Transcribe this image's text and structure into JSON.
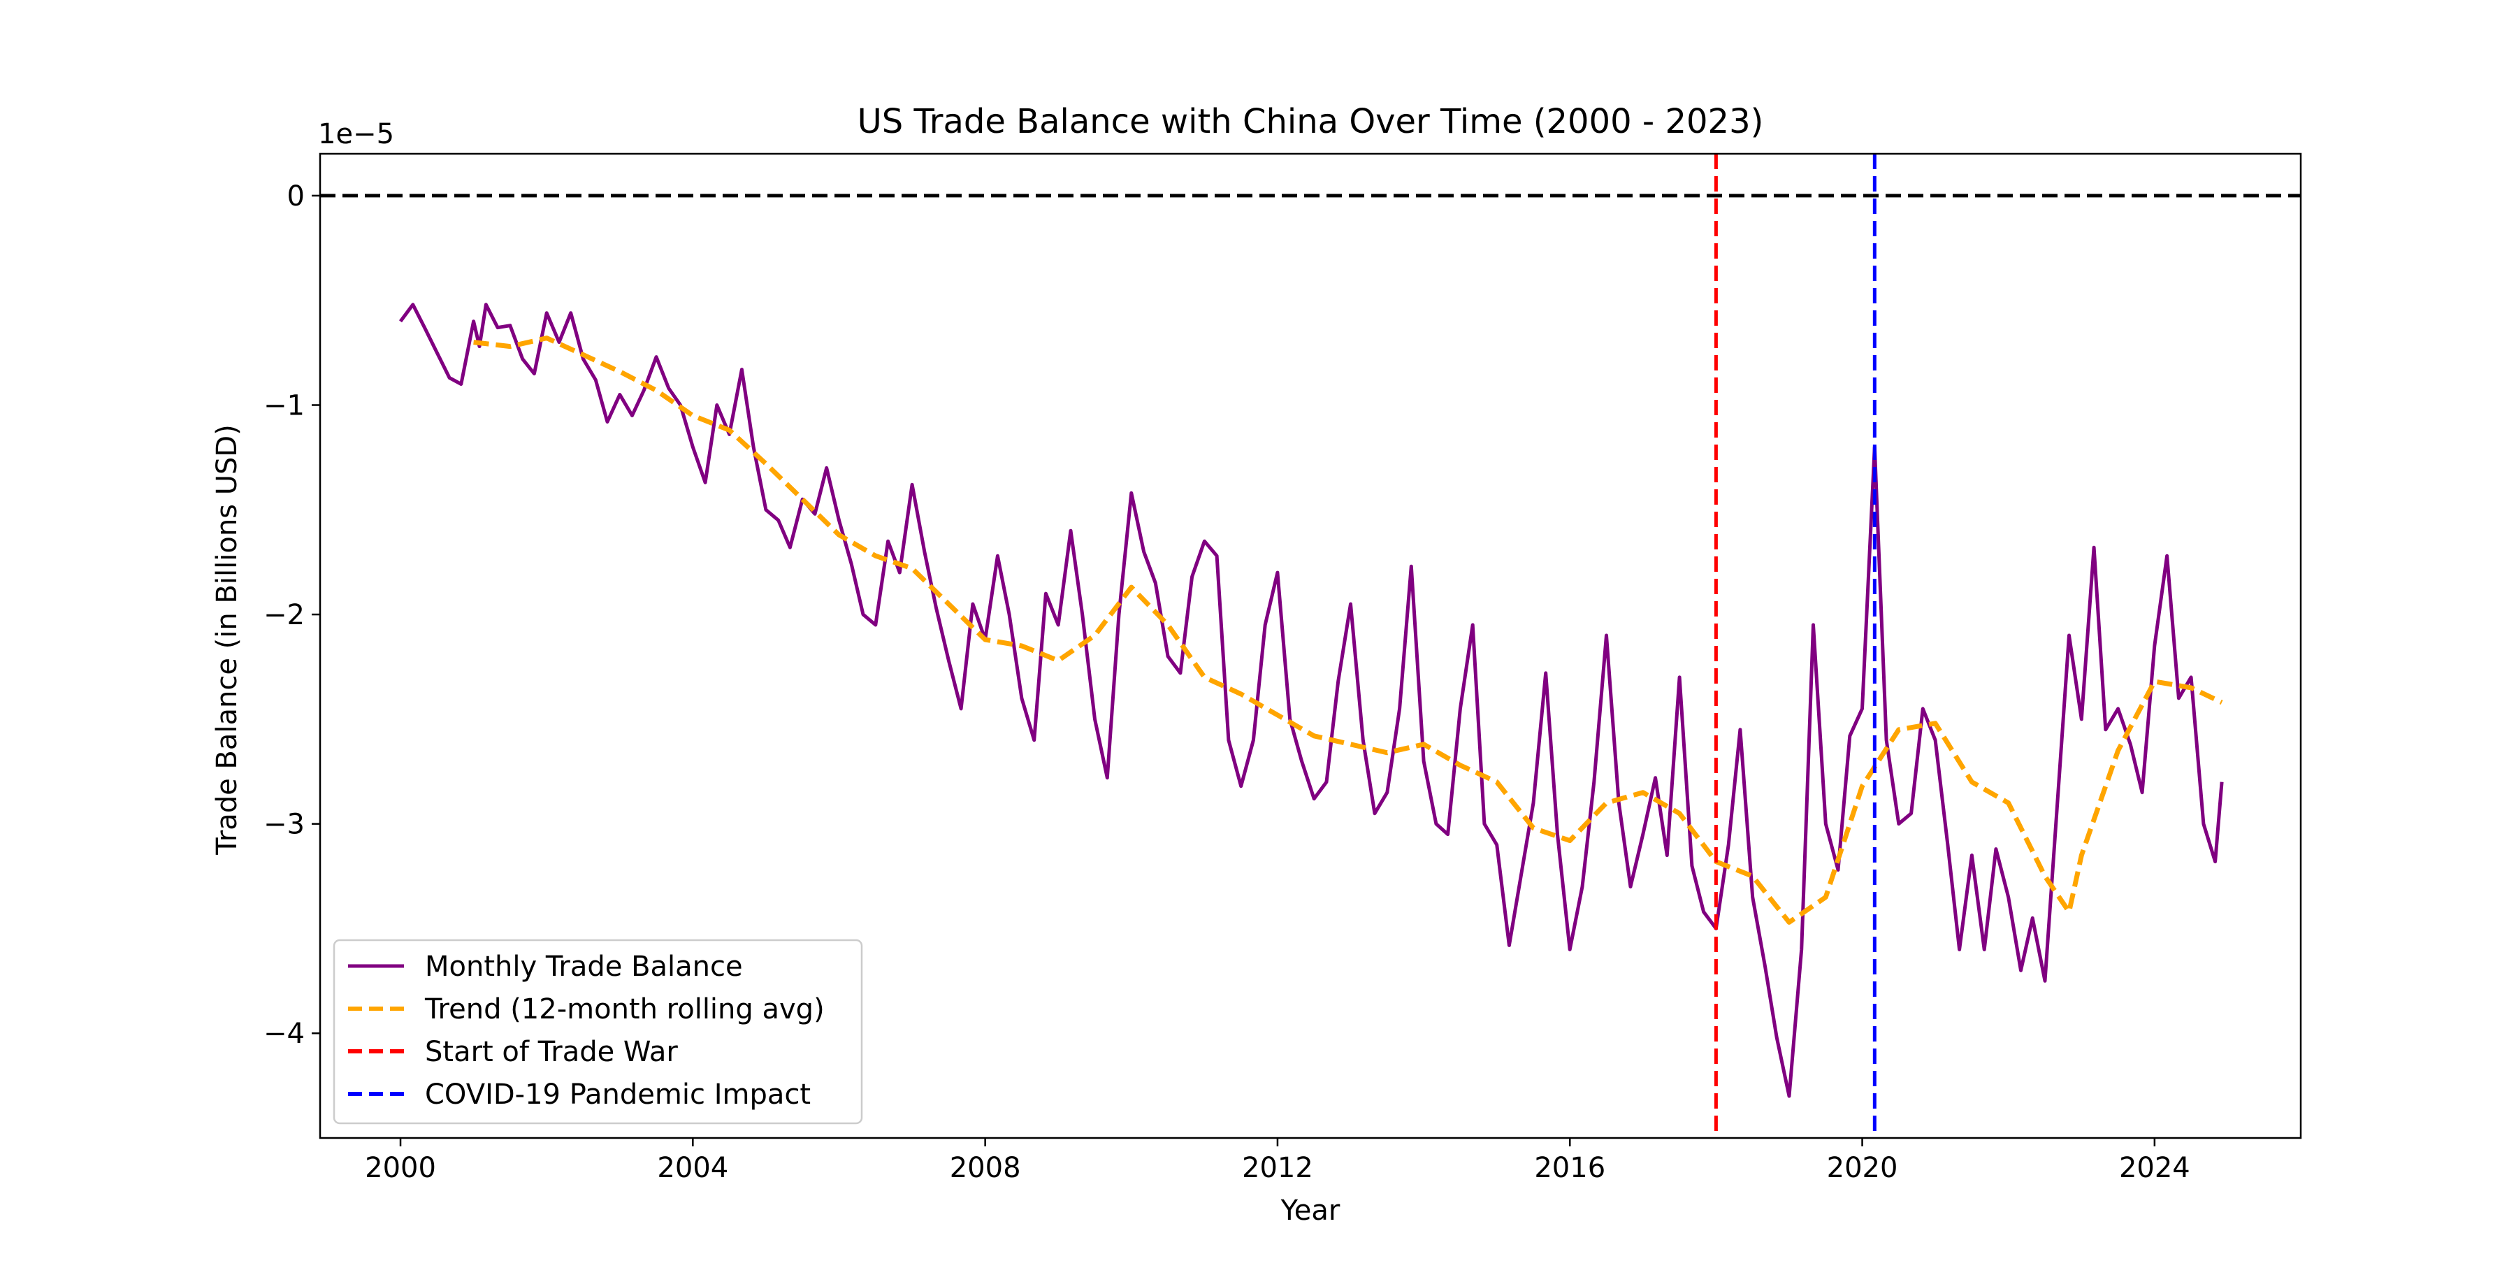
{
  "chart_data": {
    "type": "line",
    "title": "US Trade Balance with China Over Time (2000 - 2023)",
    "xlabel": "Year",
    "ylabel": "Trade Balance (in Billions USD)",
    "y_offset_text": "1e−5",
    "y_scale_factor": 1e-05,
    "xlim": [
      1998.9,
      2026.0
    ],
    "ylim": [
      -4.5,
      0.2
    ],
    "x_ticks": [
      2000,
      2004,
      2008,
      2012,
      2016,
      2020,
      2024
    ],
    "x_tick_labels": [
      "2000",
      "2004",
      "2008",
      "2012",
      "2016",
      "2020",
      "2024"
    ],
    "y_ticks": [
      0,
      -1,
      -2,
      -3,
      -4
    ],
    "y_tick_labels": [
      "0",
      "−1",
      "−2",
      "−3",
      "−4"
    ],
    "grid": false,
    "legend_position": "lower-left",
    "series": [
      {
        "name": "Monthly Trade Balance",
        "color": "#800080",
        "style": "solid",
        "points": [
          [
            2000.0,
            -0.6
          ],
          [
            2000.17,
            -0.52
          ],
          [
            2000.33,
            -0.63
          ],
          [
            2000.5,
            -0.75
          ],
          [
            2000.67,
            -0.87
          ],
          [
            2000.83,
            -0.9
          ],
          [
            2001.0,
            -0.6
          ],
          [
            2001.08,
            -0.72
          ],
          [
            2001.17,
            -0.52
          ],
          [
            2001.33,
            -0.63
          ],
          [
            2001.5,
            -0.62
          ],
          [
            2001.67,
            -0.78
          ],
          [
            2001.83,
            -0.85
          ],
          [
            2002.0,
            -0.56
          ],
          [
            2002.17,
            -0.7
          ],
          [
            2002.33,
            -0.56
          ],
          [
            2002.5,
            -0.78
          ],
          [
            2002.67,
            -0.88
          ],
          [
            2002.83,
            -1.08
          ],
          [
            2003.0,
            -0.95
          ],
          [
            2003.17,
            -1.05
          ],
          [
            2003.33,
            -0.93
          ],
          [
            2003.5,
            -0.77
          ],
          [
            2003.67,
            -0.92
          ],
          [
            2003.83,
            -1.0
          ],
          [
            2004.0,
            -1.2
          ],
          [
            2004.17,
            -1.37
          ],
          [
            2004.33,
            -1.0
          ],
          [
            2004.5,
            -1.14
          ],
          [
            2004.67,
            -0.83
          ],
          [
            2004.83,
            -1.2
          ],
          [
            2005.0,
            -1.5
          ],
          [
            2005.17,
            -1.55
          ],
          [
            2005.33,
            -1.68
          ],
          [
            2005.5,
            -1.45
          ],
          [
            2005.67,
            -1.52
          ],
          [
            2005.83,
            -1.3
          ],
          [
            2006.0,
            -1.55
          ],
          [
            2006.17,
            -1.76
          ],
          [
            2006.33,
            -2.0
          ],
          [
            2006.5,
            -2.05
          ],
          [
            2006.67,
            -1.65
          ],
          [
            2006.83,
            -1.8
          ],
          [
            2007.0,
            -1.38
          ],
          [
            2007.17,
            -1.7
          ],
          [
            2007.33,
            -1.97
          ],
          [
            2007.5,
            -2.22
          ],
          [
            2007.67,
            -2.45
          ],
          [
            2007.83,
            -1.95
          ],
          [
            2008.0,
            -2.12
          ],
          [
            2008.17,
            -1.72
          ],
          [
            2008.33,
            -2.0
          ],
          [
            2008.5,
            -2.4
          ],
          [
            2008.67,
            -2.6
          ],
          [
            2008.83,
            -1.9
          ],
          [
            2009.0,
            -2.05
          ],
          [
            2009.17,
            -1.6
          ],
          [
            2009.33,
            -2.0
          ],
          [
            2009.5,
            -2.5
          ],
          [
            2009.67,
            -2.78
          ],
          [
            2009.83,
            -2.0
          ],
          [
            2010.0,
            -1.42
          ],
          [
            2010.17,
            -1.7
          ],
          [
            2010.33,
            -1.85
          ],
          [
            2010.5,
            -2.2
          ],
          [
            2010.67,
            -2.28
          ],
          [
            2010.83,
            -1.82
          ],
          [
            2011.0,
            -1.65
          ],
          [
            2011.17,
            -1.72
          ],
          [
            2011.33,
            -2.6
          ],
          [
            2011.5,
            -2.82
          ],
          [
            2011.67,
            -2.6
          ],
          [
            2011.83,
            -2.05
          ],
          [
            2012.0,
            -1.8
          ],
          [
            2012.17,
            -2.5
          ],
          [
            2012.33,
            -2.7
          ],
          [
            2012.5,
            -2.88
          ],
          [
            2012.67,
            -2.8
          ],
          [
            2012.83,
            -2.32
          ],
          [
            2013.0,
            -1.95
          ],
          [
            2013.17,
            -2.6
          ],
          [
            2013.33,
            -2.95
          ],
          [
            2013.5,
            -2.85
          ],
          [
            2013.67,
            -2.45
          ],
          [
            2013.83,
            -1.77
          ],
          [
            2014.0,
            -2.7
          ],
          [
            2014.17,
            -3.0
          ],
          [
            2014.33,
            -3.05
          ],
          [
            2014.5,
            -2.45
          ],
          [
            2014.67,
            -2.05
          ],
          [
            2014.83,
            -3.0
          ],
          [
            2015.0,
            -3.1
          ],
          [
            2015.17,
            -3.58
          ],
          [
            2015.33,
            -3.25
          ],
          [
            2015.5,
            -2.9
          ],
          [
            2015.67,
            -2.28
          ],
          [
            2015.83,
            -3.05
          ],
          [
            2016.0,
            -3.6
          ],
          [
            2016.17,
            -3.3
          ],
          [
            2016.33,
            -2.8
          ],
          [
            2016.5,
            -2.1
          ],
          [
            2016.67,
            -2.9
          ],
          [
            2016.83,
            -3.3
          ],
          [
            2017.0,
            -3.05
          ],
          [
            2017.17,
            -2.78
          ],
          [
            2017.33,
            -3.15
          ],
          [
            2017.5,
            -2.3
          ],
          [
            2017.67,
            -3.2
          ],
          [
            2017.83,
            -3.42
          ],
          [
            2018.0,
            -3.5
          ],
          [
            2018.17,
            -3.1
          ],
          [
            2018.33,
            -2.55
          ],
          [
            2018.5,
            -3.35
          ],
          [
            2018.67,
            -3.68
          ],
          [
            2018.83,
            -4.02
          ],
          [
            2019.0,
            -4.3
          ],
          [
            2019.17,
            -3.6
          ],
          [
            2019.33,
            -2.05
          ],
          [
            2019.5,
            -3.0
          ],
          [
            2019.67,
            -3.22
          ],
          [
            2019.83,
            -2.58
          ],
          [
            2020.0,
            -2.45
          ],
          [
            2020.17,
            -1.2
          ],
          [
            2020.33,
            -2.6
          ],
          [
            2020.5,
            -3.0
          ],
          [
            2020.67,
            -2.95
          ],
          [
            2020.83,
            -2.45
          ],
          [
            2021.0,
            -2.6
          ],
          [
            2021.17,
            -3.1
          ],
          [
            2021.33,
            -3.6
          ],
          [
            2021.5,
            -3.15
          ],
          [
            2021.67,
            -3.6
          ],
          [
            2021.83,
            -3.12
          ],
          [
            2022.0,
            -3.35
          ],
          [
            2022.17,
            -3.7
          ],
          [
            2022.33,
            -3.45
          ],
          [
            2022.5,
            -3.75
          ],
          [
            2022.67,
            -2.9
          ],
          [
            2022.83,
            -2.1
          ],
          [
            2023.0,
            -2.5
          ],
          [
            2023.17,
            -1.68
          ],
          [
            2023.33,
            -2.55
          ],
          [
            2023.5,
            -2.45
          ],
          [
            2023.67,
            -2.62
          ],
          [
            2023.83,
            -2.85
          ],
          [
            2024.0,
            -2.15
          ],
          [
            2024.17,
            -1.72
          ],
          [
            2024.33,
            -2.4
          ],
          [
            2024.5,
            -2.3
          ],
          [
            2024.67,
            -3.0
          ],
          [
            2024.83,
            -3.18
          ],
          [
            2024.92,
            -2.8
          ]
        ]
      },
      {
        "name": "Trend (12-month rolling avg)",
        "color": "#ffa500",
        "style": "dashed",
        "points": [
          [
            2001.0,
            -0.7
          ],
          [
            2001.5,
            -0.72
          ],
          [
            2002.0,
            -0.68
          ],
          [
            2002.5,
            -0.76
          ],
          [
            2003.0,
            -0.84
          ],
          [
            2003.5,
            -0.93
          ],
          [
            2004.0,
            -1.05
          ],
          [
            2004.5,
            -1.12
          ],
          [
            2005.0,
            -1.28
          ],
          [
            2005.5,
            -1.45
          ],
          [
            2006.0,
            -1.62
          ],
          [
            2006.5,
            -1.72
          ],
          [
            2007.0,
            -1.78
          ],
          [
            2007.5,
            -1.95
          ],
          [
            2008.0,
            -2.12
          ],
          [
            2008.5,
            -2.15
          ],
          [
            2009.0,
            -2.22
          ],
          [
            2009.5,
            -2.1
          ],
          [
            2010.0,
            -1.87
          ],
          [
            2010.5,
            -2.05
          ],
          [
            2011.0,
            -2.3
          ],
          [
            2011.5,
            -2.38
          ],
          [
            2012.0,
            -2.48
          ],
          [
            2012.5,
            -2.58
          ],
          [
            2013.0,
            -2.62
          ],
          [
            2013.5,
            -2.66
          ],
          [
            2014.0,
            -2.62
          ],
          [
            2014.5,
            -2.72
          ],
          [
            2015.0,
            -2.8
          ],
          [
            2015.5,
            -3.02
          ],
          [
            2016.0,
            -3.08
          ],
          [
            2016.5,
            -2.9
          ],
          [
            2017.0,
            -2.85
          ],
          [
            2017.5,
            -2.95
          ],
          [
            2018.0,
            -3.18
          ],
          [
            2018.5,
            -3.25
          ],
          [
            2019.0,
            -3.47
          ],
          [
            2019.5,
            -3.35
          ],
          [
            2020.0,
            -2.82
          ],
          [
            2020.5,
            -2.55
          ],
          [
            2021.0,
            -2.52
          ],
          [
            2021.5,
            -2.8
          ],
          [
            2022.0,
            -2.9
          ],
          [
            2022.5,
            -3.25
          ],
          [
            2022.83,
            -3.42
          ],
          [
            2023.0,
            -3.15
          ],
          [
            2023.5,
            -2.65
          ],
          [
            2024.0,
            -2.32
          ],
          [
            2024.5,
            -2.35
          ],
          [
            2024.92,
            -2.42
          ]
        ]
      }
    ],
    "reference_lines": [
      {
        "name": "Zero line",
        "orientation": "horizontal",
        "y": 0,
        "color": "#000000",
        "style": "dashed"
      },
      {
        "name": "Start of Trade War",
        "orientation": "vertical",
        "x": 2018.0,
        "color": "#ff0000",
        "style": "dashed"
      },
      {
        "name": "COVID-19 Pandemic Impact",
        "orientation": "vertical",
        "x": 2020.17,
        "color": "#0000ff",
        "style": "dashed"
      }
    ],
    "legend": [
      {
        "label": "Monthly Trade Balance",
        "color": "#800080",
        "style": "solid"
      },
      {
        "label": "Trend (12-month rolling avg)",
        "color": "#ffa500",
        "style": "dashed"
      },
      {
        "label": "Start of Trade War",
        "color": "#ff0000",
        "style": "dashed"
      },
      {
        "label": "COVID-19 Pandemic Impact",
        "color": "#0000ff",
        "style": "dashed"
      }
    ]
  }
}
